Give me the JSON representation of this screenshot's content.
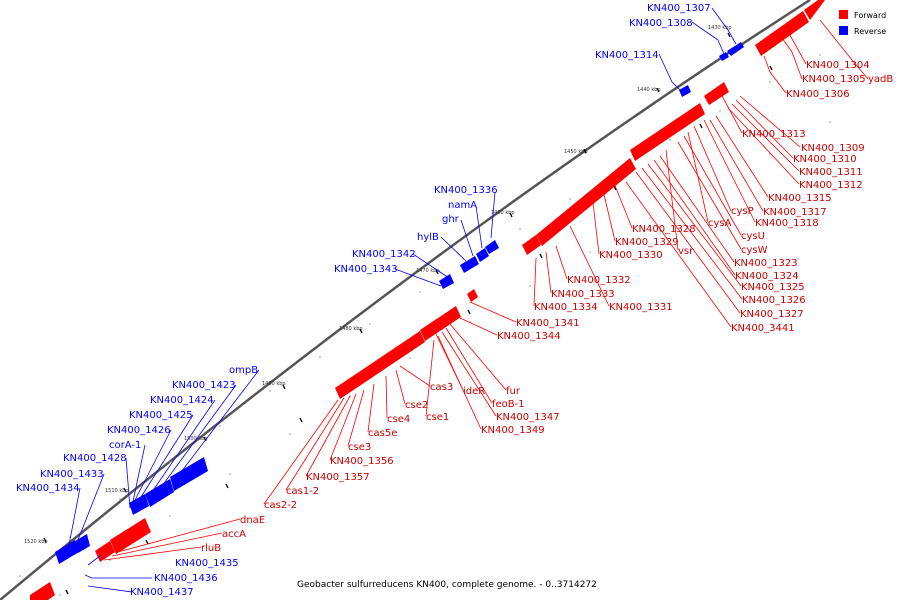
{
  "caption": "Geobacter sulfurreducens KN400, complete genome. - 0..3714272",
  "legend": [
    {
      "label": "Forward",
      "color": "#ff0000"
    },
    {
      "label": "Reverse",
      "color": "#0000ff"
    }
  ],
  "colors": {
    "forward": "#ff0000",
    "reverse": "#0000ff",
    "backbone": "#555555"
  },
  "ticks": [
    "1430 kbp",
    "1440 kbp",
    "1450 kbp",
    "1460 kbp",
    "1470 kbp",
    "1480 kbp",
    "1490 kbp",
    "1500 kbp",
    "1510 kbp",
    "1520 kbp"
  ],
  "reverse_labels": [
    "KN400_1307",
    "KN400_1308",
    "KN400_1314",
    "KN400_1336",
    "namA",
    "ghr",
    "hylB",
    "KN400_1342",
    "KN400_1343",
    "ompB",
    "KN400_1423",
    "KN400_1424",
    "KN400_1425",
    "KN400_1426",
    "corA-1",
    "KN400_1428",
    "KN400_1433",
    "KN400_1434",
    "KN400_1435",
    "KN400_1436",
    "KN400_1437"
  ],
  "forward_labels": [
    "KN400_1304",
    "KN400_1305",
    "yadB",
    "KN400_1306",
    "KN400_1313",
    "KN400_1309",
    "KN400_1310",
    "KN400_1311",
    "KN400_1312",
    "KN400_1315",
    "KN400_1317",
    "cysP",
    "KN400_1318",
    "cysA",
    "cysU",
    "cysW",
    "KN400_1328",
    "KN400_1329",
    "vsr",
    "KN400_1330",
    "KN400_1323",
    "KN400_1324",
    "KN400_1325",
    "KN400_1326",
    "KN400_1327",
    "KN400_3441",
    "KN400_1332",
    "KN400_1333",
    "KN400_1334",
    "KN400_1331",
    "KN400_1341",
    "KN400_1344",
    "cas3",
    "ideR",
    "fur",
    "feoB-1",
    "cse2",
    "KN400_1347",
    "cse4",
    "cse1",
    "KN400_1349",
    "cas5e",
    "cse3",
    "KN400_1356",
    "KN400_1357",
    "cas1-2",
    "cas2-2",
    "dnaE",
    "accA",
    "rluB"
  ]
}
